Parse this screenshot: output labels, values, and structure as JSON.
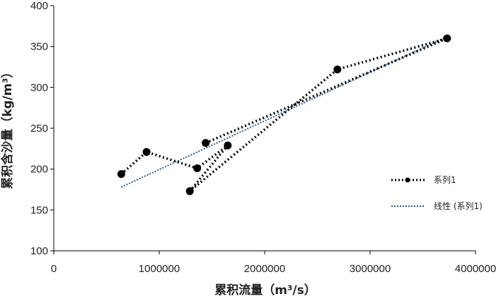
{
  "chart_data": {
    "type": "scatter",
    "title": "",
    "xlabel": "累积流量（m³/s）",
    "ylabel": "累积含沙量（kg/m³）",
    "xlim": [
      0,
      4000000
    ],
    "ylim": [
      100,
      400
    ],
    "x_ticks": [
      0,
      1000000,
      2000000,
      3000000,
      4000000
    ],
    "y_ticks": [
      100,
      150,
      200,
      250,
      300,
      350,
      400
    ],
    "x_tick_labels": [
      "0",
      "1000000",
      "2000000",
      "3000000",
      "4000000"
    ],
    "y_tick_labels": [
      "100",
      "150",
      "200",
      "250",
      "300",
      "350",
      "400"
    ],
    "grid": false,
    "legend_position": "right",
    "series": [
      {
        "name": "系列1",
        "style": "dotted-line-with-markers",
        "color": "#000000",
        "x": [
          640000,
          880000,
          1360000,
          1650000,
          1290000,
          2690000,
          3730000,
          1440000
        ],
        "y": [
          194,
          221,
          201,
          229,
          173,
          322,
          360,
          232
        ]
      },
      {
        "name": "线性 (系列1)",
        "style": "dotted-trendline",
        "color": "#2f5a86",
        "x": [
          640000,
          3730000
        ],
        "y": [
          178,
          362
        ]
      }
    ]
  }
}
